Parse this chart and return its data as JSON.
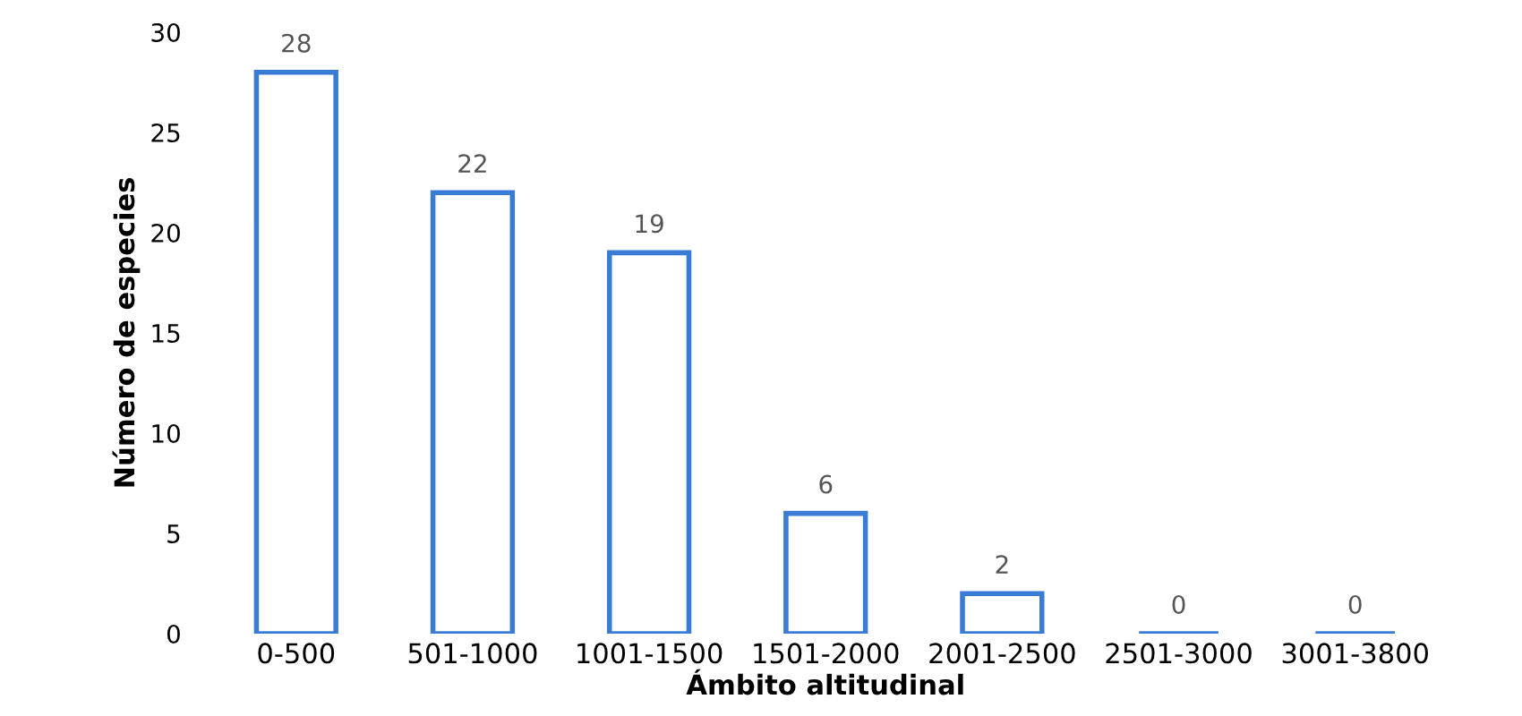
{
  "chart_data": {
    "type": "bar",
    "categories": [
      "0-500",
      "501-1000",
      "1001-1500",
      "1501-2000",
      "2001-2500",
      "2501-3000",
      "3001-3800"
    ],
    "values": [
      28,
      22,
      19,
      6,
      2,
      0,
      0
    ],
    "color": "#3a7bd5",
    "ylim": [
      0,
      30
    ],
    "yticks": [
      0,
      5,
      10,
      15,
      20,
      25,
      30
    ],
    "ylabel": "Número de especies",
    "xlabel": "Ámbito altitudinal",
    "data_labels": true,
    "grid": false,
    "legend": false
  }
}
